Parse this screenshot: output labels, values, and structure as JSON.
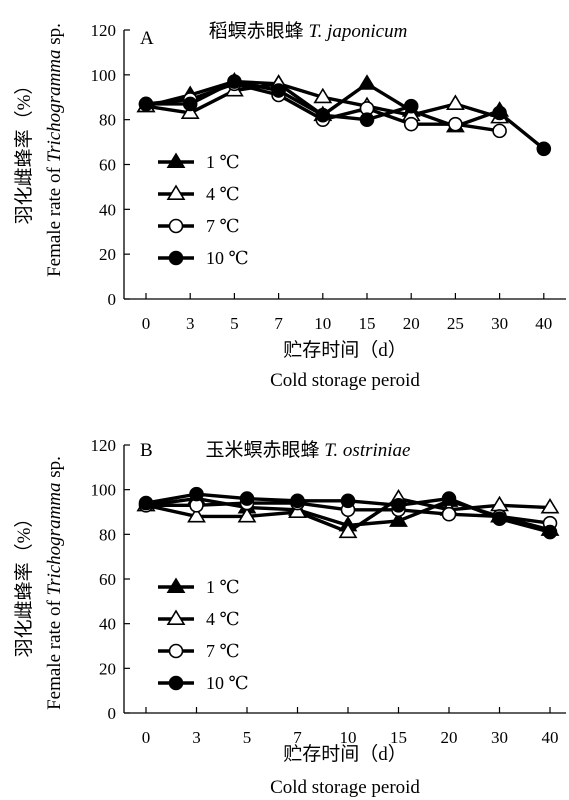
{
  "chart_data": [
    {
      "type": "line",
      "panel_letter": "A",
      "title_cn": "稻螟赤眼蜂",
      "title_species": "T. japonicum",
      "ylabel_cn": "羽化雌蜂率（%）",
      "ylabel_en_prefix": "Female rate of ",
      "ylabel_en_genus": "Trichogramma",
      "ylabel_en_suffix": " sp.",
      "xlabel_cn": "贮存时间（d）",
      "xlabel_en": "Cold storage peroid",
      "categories": [
        "0",
        "3",
        "5",
        "7",
        "10",
        "15",
        "20",
        "25",
        "30",
        "40"
      ],
      "ylim": [
        0,
        120
      ],
      "yticks": [
        "0",
        "20",
        "40",
        "60",
        "80",
        "100",
        "120"
      ],
      "legend_position": "left-middle",
      "series": [
        {
          "name": "1 ℃",
          "marker": "triangle-filled",
          "values": [
            86,
            91,
            97,
            96,
            82,
            96,
            84,
            77,
            84,
            null
          ]
        },
        {
          "name": "4 ℃",
          "marker": "triangle-open",
          "values": [
            86,
            83,
            93,
            96,
            90,
            86,
            82,
            87,
            81,
            null
          ]
        },
        {
          "name": "7 ℃",
          "marker": "circle-open",
          "values": [
            87,
            89,
            96,
            91,
            80,
            85,
            78,
            78,
            75,
            null
          ]
        },
        {
          "name": "10 ℃",
          "marker": "circle-filled",
          "values": [
            87,
            87,
            97,
            93,
            82,
            80,
            86,
            null,
            83,
            67
          ]
        }
      ]
    },
    {
      "type": "line",
      "panel_letter": "B",
      "title_cn": "玉米螟赤眼蜂",
      "title_species": "T. ostriniae",
      "ylabel_cn": "羽化雌蜂率（%）",
      "ylabel_en_prefix": "Female rate of ",
      "ylabel_en_genus": "Trichogramma",
      "ylabel_en_suffix": " sp.",
      "xlabel_cn": "贮存时间（d）",
      "xlabel_en": "Cold storage peroid",
      "categories": [
        "0",
        "3",
        "5",
        "7",
        "10",
        "15",
        "20",
        "30",
        "40"
      ],
      "ylim": [
        0,
        120
      ],
      "yticks": [
        "0",
        "20",
        "40",
        "60",
        "80",
        "100",
        "120"
      ],
      "legend_position": "left-middle",
      "series": [
        {
          "name": "1 ℃",
          "marker": "triangle-filled",
          "values": [
            93,
            96,
            92,
            91,
            84,
            86,
            95,
            88,
            82
          ]
        },
        {
          "name": "4 ℃",
          "marker": "triangle-open",
          "values": [
            93,
            88,
            88,
            90,
            81,
            96,
            91,
            93,
            92
          ]
        },
        {
          "name": "7 ℃",
          "marker": "circle-open",
          "values": [
            93,
            93,
            94,
            94,
            91,
            91,
            89,
            88,
            85
          ]
        },
        {
          "name": "10 ℃",
          "marker": "circle-filled",
          "values": [
            94,
            98,
            96,
            95,
            95,
            93,
            96,
            87,
            81
          ]
        }
      ]
    }
  ]
}
